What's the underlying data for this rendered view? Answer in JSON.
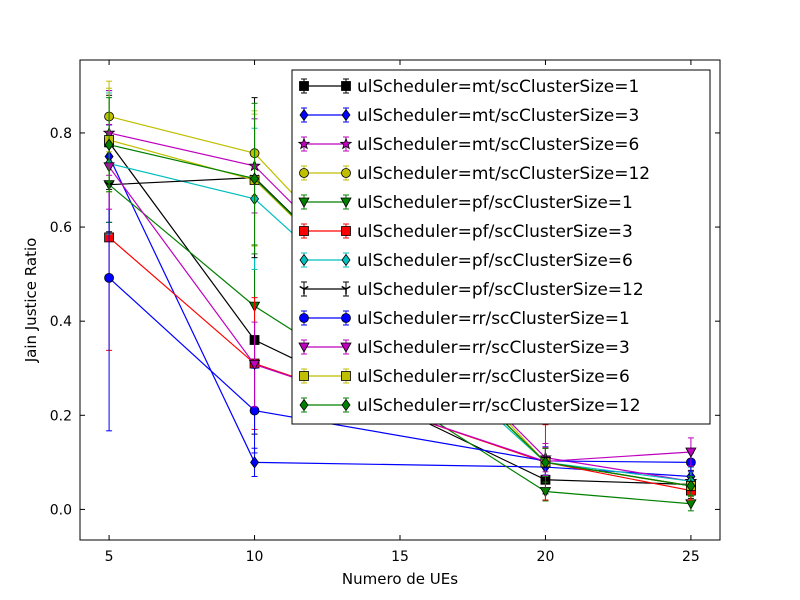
{
  "chart_data": {
    "type": "line",
    "title": "",
    "xlabel": "Numero de UEs",
    "ylabel": "Jain Justice Ratio",
    "xlim": [
      4,
      26
    ],
    "ylim": [
      -0.065,
      0.955
    ],
    "xticks": [
      5,
      10,
      15,
      20,
      25
    ],
    "yticks": [
      0.0,
      0.2,
      0.4,
      0.6,
      0.8
    ],
    "xtick_labels": [
      "5",
      "10",
      "15",
      "20",
      "25"
    ],
    "ytick_labels": [
      "0.0",
      "0.2",
      "0.4",
      "0.6",
      "0.8"
    ],
    "grid": false,
    "legend_position": "upper right",
    "x": [
      5,
      10,
      20,
      25
    ],
    "series": [
      {
        "name": "ulScheduler=mt/scClusterSize=1",
        "color": "#000000",
        "marker": "square",
        "values": [
          0.78,
          0.36,
          0.063,
          0.053
        ],
        "errors": [
          0.1,
          0.2,
          0.03,
          0.03
        ]
      },
      {
        "name": "ulScheduler=mt/scClusterSize=3",
        "color": "#0000ff",
        "marker": "diamond",
        "values": [
          0.75,
          0.1,
          0.09,
          0.07
        ],
        "errors": [
          0.14,
          0.03,
          0.02,
          0.02
        ]
      },
      {
        "name": "ulScheduler=mt/scClusterSize=6",
        "color": "#bf00bf",
        "marker": "star",
        "values": [
          0.8,
          0.73,
          0.11,
          0.06
        ],
        "errors": [
          0.09,
          0.1,
          0.03,
          0.03
        ]
      },
      {
        "name": "ulScheduler=mt/scClusterSize=12",
        "color": "#bfbf00",
        "marker": "circle",
        "values": [
          0.835,
          0.757,
          0.1,
          0.05
        ],
        "errors": [
          0.075,
          0.09,
          0.03,
          0.03
        ]
      },
      {
        "name": "ulScheduler=pf/scClusterSize=1",
        "color": "#008000",
        "marker": "triangle-down",
        "values": [
          0.69,
          0.432,
          0.038,
          0.012
        ],
        "errors": [
          0.08,
          0.13,
          0.02,
          0.015
        ]
      },
      {
        "name": "ulScheduler=pf/scClusterSize=3",
        "color": "#ff0000",
        "marker": "square",
        "values": [
          0.578,
          0.31,
          0.1,
          0.04
        ],
        "errors": [
          0.24,
          0.14,
          0.08,
          0.02
        ]
      },
      {
        "name": "ulScheduler=pf/scClusterSize=6",
        "color": "#00bfbf",
        "marker": "diamond",
        "values": [
          0.735,
          0.66,
          0.1,
          0.06
        ],
        "errors": [
          0.15,
          0.15,
          0.03,
          0.03
        ]
      },
      {
        "name": "ulScheduler=pf/scClusterSize=12",
        "color": "#000000",
        "marker": "tri-down",
        "values": [
          0.69,
          0.705,
          0.1,
          0.05
        ],
        "errors": [
          0.1,
          0.17,
          0.03,
          0.02
        ]
      },
      {
        "name": "ulScheduler=rr/scClusterSize=1",
        "color": "#0000ff",
        "marker": "circle",
        "values": [
          0.492,
          0.21,
          0.103,
          0.1
        ],
        "errors": [
          0.325,
          0.09,
          0.03,
          0.02
        ]
      },
      {
        "name": "ulScheduler=rr/scClusterSize=3",
        "color": "#bf00bf",
        "marker": "triangle-down",
        "values": [
          0.728,
          0.308,
          0.102,
          0.122
        ],
        "errors": [
          0.09,
          0.09,
          0.03,
          0.03
        ]
      },
      {
        "name": "ulScheduler=rr/scClusterSize=6",
        "color": "#bfbf00",
        "marker": "square",
        "values": [
          0.785,
          0.7,
          0.1,
          0.05
        ],
        "errors": [
          0.11,
          0.14,
          0.03,
          0.02
        ]
      },
      {
        "name": "ulScheduler=rr/scClusterSize=12",
        "color": "#008000",
        "marker": "diamond",
        "values": [
          0.775,
          0.703,
          0.1,
          0.05
        ],
        "errors": [
          0.1,
          0.16,
          0.03,
          0.02
        ]
      }
    ]
  }
}
